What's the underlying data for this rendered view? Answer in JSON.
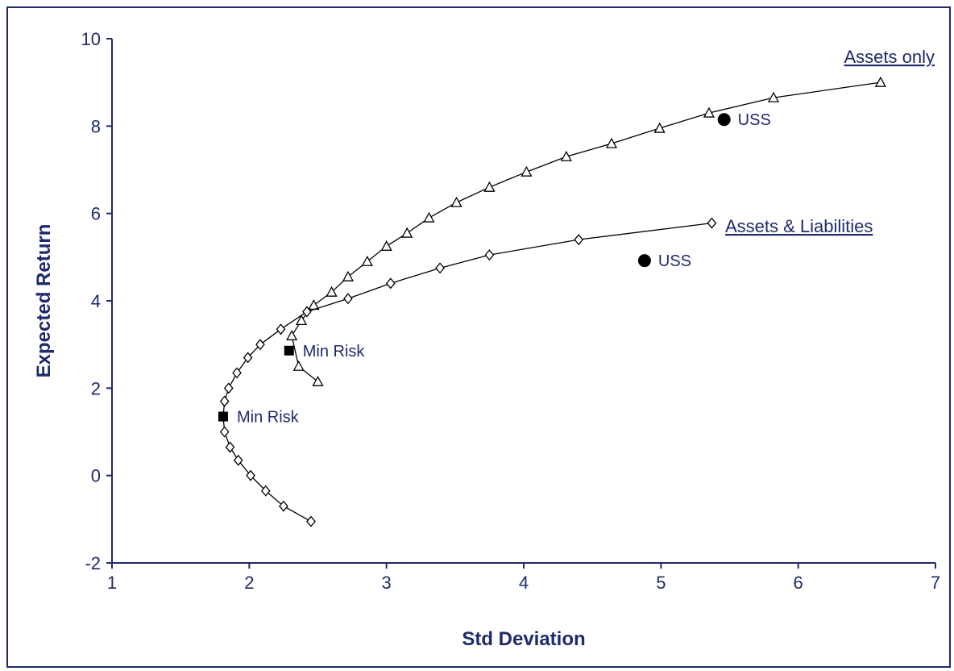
{
  "colors": {
    "axis": "#1f2a6b",
    "text": "#1f2a6b",
    "line": "#000000",
    "marker_fill": "#ffffff"
  },
  "chart_data": {
    "type": "line",
    "title": "",
    "xlabel": "Std Deviation",
    "ylabel": "Expected Return",
    "xlim": [
      1,
      7
    ],
    "ylim": [
      -2,
      10
    ],
    "xticks": [
      "1",
      "2",
      "3",
      "4",
      "5",
      "6",
      "7"
    ],
    "yticks": [
      "-2",
      "0",
      "2",
      "4",
      "6",
      "8",
      "10"
    ],
    "grid": false,
    "series": [
      {
        "name": "Assets only",
        "marker": "triangle",
        "x": [
          2.5,
          2.36,
          2.31,
          2.38,
          2.47,
          2.6,
          2.72,
          2.86,
          3.0,
          3.15,
          3.31,
          3.51,
          3.75,
          4.02,
          4.31,
          4.64,
          4.99,
          5.35,
          5.82,
          6.6
        ],
        "y": [
          2.15,
          2.5,
          3.2,
          3.55,
          3.9,
          4.2,
          4.55,
          4.9,
          5.25,
          5.55,
          5.9,
          6.25,
          6.6,
          6.95,
          7.3,
          7.6,
          7.95,
          8.3,
          8.65,
          9.0
        ]
      },
      {
        "name": "Assets & Liabilities",
        "marker": "diamond",
        "x": [
          2.45,
          2.25,
          2.12,
          2.01,
          1.92,
          1.86,
          1.82,
          1.81,
          1.82,
          1.85,
          1.91,
          1.99,
          2.08,
          2.23,
          2.42,
          2.72,
          3.03,
          3.39,
          3.75,
          4.4,
          5.37
        ],
        "y": [
          -1.05,
          -0.7,
          -0.35,
          0.0,
          0.35,
          0.65,
          1.0,
          1.35,
          1.7,
          2.0,
          2.35,
          2.7,
          3.0,
          3.35,
          3.75,
          4.05,
          4.4,
          4.75,
          5.05,
          5.4,
          5.78
        ]
      }
    ],
    "points": [
      {
        "label": "USS",
        "x": 5.46,
        "y": 8.15,
        "marker": "circle"
      },
      {
        "label": "USS",
        "x": 4.88,
        "y": 4.92,
        "marker": "circle"
      },
      {
        "label": "Min Risk",
        "x": 2.29,
        "y": 2.86,
        "marker": "square"
      },
      {
        "label": "Min Risk",
        "x": 1.81,
        "y": 1.35,
        "marker": "square"
      }
    ]
  }
}
